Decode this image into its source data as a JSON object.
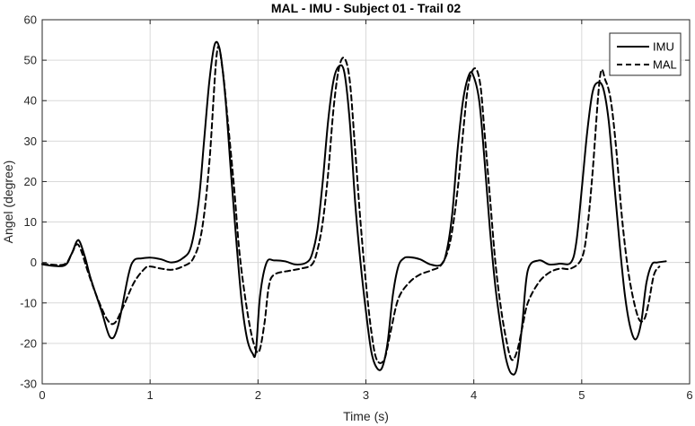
{
  "chart_data": {
    "type": "line",
    "title": "MAL - IMU - Subject 01 - Trail 02",
    "xlabel": "Time (s)",
    "ylabel": "Angel (degree)",
    "xlim": [
      0,
      6
    ],
    "ylim": [
      -30,
      60
    ],
    "xticks": [
      "0",
      "1",
      "2",
      "3",
      "4",
      "5",
      "6"
    ],
    "yticks": [
      "-30",
      "-20",
      "-10",
      "0",
      "10",
      "20",
      "30",
      "40",
      "50",
      "60"
    ],
    "grid": true,
    "legend_position": "top-right",
    "series": [
      {
        "name": "IMU",
        "style": "solid",
        "color": "#000000",
        "x": [
          0,
          0.2,
          0.27,
          0.32,
          0.35,
          0.4,
          0.45,
          0.55,
          0.63,
          0.7,
          0.8,
          0.85,
          0.92,
          1.0,
          1.1,
          1.2,
          1.3,
          1.38,
          1.45,
          1.5,
          1.55,
          1.6,
          1.65,
          1.7,
          1.75,
          1.8,
          1.85,
          1.9,
          1.95,
          1.98,
          2.02,
          2.08,
          2.15,
          2.25,
          2.35,
          2.45,
          2.5,
          2.55,
          2.6,
          2.65,
          2.7,
          2.75,
          2.8,
          2.85,
          2.9,
          2.95,
          3.0,
          3.05,
          3.1,
          3.15,
          3.2,
          3.25,
          3.3,
          3.35,
          3.4,
          3.5,
          3.6,
          3.7,
          3.75,
          3.8,
          3.85,
          3.9,
          3.95,
          3.99,
          4.05,
          4.1,
          4.15,
          4.2,
          4.25,
          4.3,
          4.35,
          4.4,
          4.45,
          4.5,
          4.6,
          4.7,
          4.8,
          4.9,
          4.95,
          5.0,
          5.05,
          5.1,
          5.15,
          5.2,
          5.25,
          5.3,
          5.35,
          5.4,
          5.45,
          5.5,
          5.55,
          5.6,
          5.65,
          5.7,
          5.78
        ],
        "y": [
          -0.5,
          -0.8,
          2,
          5.2,
          5,
          1,
          -4,
          -12,
          -18.5,
          -16,
          -3,
          0.5,
          1,
          1.2,
          0.8,
          0,
          1,
          4,
          15,
          30,
          45,
          54,
          52,
          40,
          22,
          5,
          -10,
          -19,
          -22.5,
          -22,
          -8,
          0,
          0.5,
          0.3,
          -0.5,
          0,
          2,
          8,
          20,
          35,
          45,
          48.5,
          47,
          35,
          15,
          0,
          -12,
          -22,
          -26,
          -26,
          -20,
          -8,
          -1,
          1,
          1.3,
          0.8,
          -0.5,
          -0.5,
          3,
          12,
          28,
          40,
          46,
          46.5,
          40,
          25,
          8,
          -6,
          -16,
          -24,
          -27.5,
          -26,
          -15,
          -2,
          0.5,
          -0.5,
          -0.3,
          0,
          5,
          18,
          32,
          42,
          44.5,
          43,
          35,
          20,
          5,
          -8,
          -16,
          -19,
          -15,
          -5,
          -0.5,
          0,
          0.3
        ]
      },
      {
        "name": "MAL",
        "style": "dashed",
        "color": "#000000",
        "x": [
          0,
          0.2,
          0.27,
          0.32,
          0.36,
          0.42,
          0.5,
          0.6,
          0.67,
          0.75,
          0.85,
          0.95,
          1.0,
          1.1,
          1.2,
          1.3,
          1.4,
          1.48,
          1.55,
          1.62,
          1.67,
          1.72,
          1.78,
          1.83,
          1.9,
          1.96,
          2.01,
          2.06,
          2.1,
          2.15,
          2.3,
          2.4,
          2.5,
          2.55,
          2.6,
          2.65,
          2.7,
          2.75,
          2.8,
          2.85,
          2.9,
          2.95,
          3.0,
          3.05,
          3.1,
          3.17,
          3.23,
          3.3,
          3.4,
          3.5,
          3.6,
          3.7,
          3.78,
          3.85,
          3.9,
          3.95,
          4.01,
          4.06,
          4.1,
          4.15,
          4.2,
          4.25,
          4.3,
          4.35,
          4.4,
          4.45,
          4.5,
          4.6,
          4.7,
          4.8,
          4.9,
          5.0,
          5.05,
          5.1,
          5.17,
          5.22,
          5.27,
          5.32,
          5.37,
          5.42,
          5.47,
          5.53,
          5.58,
          5.62,
          5.67,
          5.72
        ],
        "y": [
          -0.3,
          -0.5,
          2,
          4.5,
          3,
          -2,
          -8,
          -14,
          -15,
          -11,
          -5,
          -1.5,
          -1,
          -1.5,
          -1.8,
          -1,
          1,
          8,
          25,
          52,
          48,
          35,
          18,
          2,
          -12,
          -20,
          -22,
          -15,
          -6,
          -3,
          -2,
          -1.5,
          -0.5,
          3,
          10,
          22,
          38,
          48,
          50.5,
          45,
          28,
          10,
          -5,
          -17,
          -24,
          -24,
          -17,
          -9,
          -5,
          -3,
          -2,
          -0.5,
          5,
          18,
          32,
          44,
          48,
          44,
          32,
          16,
          0,
          -11,
          -19,
          -24,
          -22,
          -16,
          -10,
          -5,
          -2.5,
          -1.5,
          -1.5,
          1,
          8,
          22,
          46,
          45,
          40,
          28,
          12,
          0,
          -8,
          -14,
          -14,
          -10,
          -3,
          -1
        ]
      }
    ]
  }
}
